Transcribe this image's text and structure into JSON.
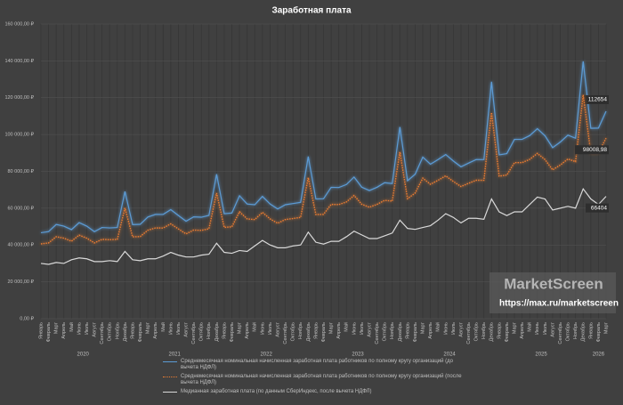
{
  "chart_data": {
    "type": "line",
    "title": "Заработная плата",
    "categories": [
      "Январь",
      "Февраль",
      "Март",
      "Апрель",
      "Май",
      "Июнь",
      "Июль",
      "Август",
      "Сентябрь",
      "Октябрь",
      "Ноябрь",
      "Декабрь",
      "Январь",
      "Февраль",
      "Март",
      "Апрель",
      "Май",
      "Июнь",
      "Июль",
      "Август",
      "Сентябрь",
      "Октябрь",
      "Ноябрь",
      "Декабрь",
      "Январь",
      "Февраль",
      "Март",
      "Апрель",
      "Май",
      "Июнь",
      "Июль",
      "Август",
      "Сентябрь",
      "Октябрь",
      "Ноябрь",
      "Декабрь",
      "Январь",
      "Февраль",
      "Март",
      "Апрель",
      "Май",
      "Июнь",
      "Июль",
      "Август",
      "Сентябрь",
      "Октябрь",
      "Ноябрь",
      "Декабрь",
      "Январь",
      "Февраль",
      "Март",
      "Апрель",
      "Май",
      "Июнь",
      "Июль",
      "Август",
      "Сентябрь",
      "Октябрь",
      "Ноябрь",
      "Декабрь",
      "Январь",
      "Февраль",
      "Март",
      "Апрель",
      "Май",
      "Июнь",
      "Июль",
      "Август",
      "Сентябрь",
      "Октябрь",
      "Ноябрь",
      "Декабрь",
      "Январь",
      "Февраль",
      "Март"
    ],
    "year_labels": [
      "2020",
      "2021",
      "2022",
      "2023",
      "2024",
      "2025",
      "2026"
    ],
    "series": [
      {
        "name": "Среднемесячная номинальная начисленная заработная плата работников по полному кругу организаций (до вычета НДФЛ)",
        "color": "#5b9bd5",
        "style": "solid",
        "values": [
          46674,
          47257,
          51144,
          50240,
          48347,
          52145,
          50237,
          47257,
          49516,
          49274,
          49516,
          69064,
          51083,
          51229,
          55208,
          56614,
          56589,
          59204,
          55999,
          52932,
          55296,
          55090,
          56095,
          78424,
          56965,
          57344,
          66757,
          62269,
          61863,
          66385,
          62281,
          59580,
          61879,
          62500,
          63177,
          88046,
          64991,
          65094,
          71334,
          71204,
          72851,
          76920,
          71419,
          69562,
          71334,
          73830,
          73376,
          104093,
          74869,
          78439,
          87740,
          83875,
          86384,
          89145,
          85629,
          82483,
          84504,
          86403,
          86384,
          128665,
          88981,
          89646,
          97375,
          97412,
          99422,
          103183,
          99305,
          92866,
          95890,
          99680,
          98000,
          139700,
          103400,
          103500,
          112654
        ],
        "value_labels": [
          null,
          null,
          null,
          null,
          null,
          null,
          null,
          null,
          null,
          null,
          null,
          null,
          null,
          null,
          null,
          null,
          null,
          null,
          null,
          null,
          null,
          null,
          null,
          null,
          null,
          null,
          null,
          null,
          null,
          null,
          null,
          null,
          null,
          null,
          null,
          null,
          null,
          null,
          null,
          null,
          null,
          null,
          null,
          null,
          null,
          null,
          null,
          null,
          null,
          null,
          null,
          null,
          null,
          null,
          null,
          null,
          null,
          null,
          null,
          null,
          null,
          null,
          null,
          null,
          null,
          null,
          null,
          null,
          null,
          null,
          null,
          null,
          null,
          null,
          "112654"
        ]
      },
      {
        "name": "Среднемесячная номинальная начисленная заработная плата работников по полному кругу организаций (после вычета НДФЛ)",
        "color": "#ed7d31",
        "style": "dotted",
        "values": [
          40606,
          41114,
          44495,
          43709,
          42062,
          45366,
          43706,
          41114,
          43079,
          42868,
          43079,
          60086,
          44442,
          44569,
          48031,
          49254,
          49232,
          51507,
          48719,
          46051,
          48108,
          47928,
          48803,
          68229,
          49560,
          49889,
          58079,
          54174,
          53821,
          57755,
          54184,
          51835,
          53835,
          54375,
          54964,
          76600,
          56542,
          56632,
          62061,
          61947,
          63380,
          66920,
          62135,
          60519,
          62061,
          64232,
          63837,
          90561,
          65136,
          68242,
          76334,
          72971,
          75154,
          77556,
          74497,
          71760,
          73518,
          75171,
          75154,
          111939,
          77413,
          77992,
          84716,
          84748,
          86497,
          89769,
          86395,
          80793,
          83424,
          86722,
          85260,
          121539,
          89958,
          90045,
          98008.98
        ],
        "value_labels": [
          null,
          null,
          null,
          null,
          null,
          null,
          null,
          null,
          null,
          null,
          null,
          null,
          null,
          null,
          null,
          null,
          null,
          null,
          null,
          null,
          null,
          null,
          null,
          null,
          null,
          null,
          null,
          null,
          null,
          null,
          null,
          null,
          null,
          null,
          null,
          null,
          null,
          null,
          null,
          null,
          null,
          null,
          null,
          null,
          null,
          null,
          null,
          null,
          null,
          null,
          null,
          null,
          null,
          null,
          null,
          null,
          null,
          null,
          null,
          null,
          null,
          null,
          null,
          null,
          null,
          null,
          null,
          null,
          null,
          null,
          null,
          null,
          null,
          null,
          "98008,98"
        ]
      },
      {
        "name": "Медианная заработная плата (по данным СберИндекс, после вычета НДФЛ)",
        "color": "#d9d9d9",
        "style": "solid",
        "values": [
          30000,
          29500,
          30500,
          30000,
          32000,
          33000,
          32500,
          31000,
          31000,
          31500,
          31000,
          36500,
          32000,
          31500,
          32500,
          32500,
          34000,
          36000,
          34500,
          33500,
          33500,
          34500,
          35000,
          41000,
          36000,
          35500,
          37000,
          36500,
          39500,
          42500,
          40000,
          38500,
          38500,
          39500,
          40000,
          47000,
          41500,
          40500,
          42000,
          42000,
          44500,
          47500,
          45500,
          43500,
          43500,
          45000,
          46500,
          53500,
          49000,
          48500,
          49500,
          50500,
          53500,
          57000,
          55000,
          52000,
          54500,
          54500,
          54000,
          65000,
          58000,
          56000,
          58000,
          58000,
          62000,
          66000,
          65000,
          59000,
          60000,
          61000,
          60000,
          70500,
          65000,
          62000,
          66404
        ],
        "value_labels": [
          null,
          null,
          null,
          null,
          null,
          null,
          null,
          null,
          null,
          null,
          null,
          null,
          null,
          null,
          null,
          null,
          null,
          null,
          null,
          null,
          null,
          null,
          null,
          null,
          null,
          null,
          null,
          null,
          null,
          null,
          null,
          null,
          null,
          null,
          null,
          null,
          null,
          null,
          null,
          null,
          null,
          null,
          null,
          null,
          null,
          null,
          null,
          null,
          null,
          null,
          null,
          null,
          null,
          null,
          null,
          null,
          null,
          null,
          null,
          null,
          null,
          null,
          null,
          null,
          null,
          null,
          null,
          null,
          null,
          null,
          null,
          null,
          null,
          null,
          "66404"
        ]
      }
    ],
    "ylim": [
      0,
      160000
    ],
    "yticks": [
      {
        "value": 0,
        "label": "0,00 ₽"
      },
      {
        "value": 20000,
        "label": "20 000,00 ₽"
      },
      {
        "value": 40000,
        "label": "40 000,00 ₽"
      },
      {
        "value": 60000,
        "label": "60 000,00 ₽"
      },
      {
        "value": 80000,
        "label": "80 000,00 ₽"
      },
      {
        "value": 100000,
        "label": "100 000,00 ₽"
      },
      {
        "value": 120000,
        "label": "120 000,00 ₽"
      },
      {
        "value": 140000,
        "label": "140 000,00 ₽"
      },
      {
        "value": 160000,
        "label": "160 000,00 ₽"
      }
    ],
    "grid": true,
    "watermark": {
      "brand": "MarketScreen",
      "url": "https://max.ru/marketscreen"
    }
  }
}
